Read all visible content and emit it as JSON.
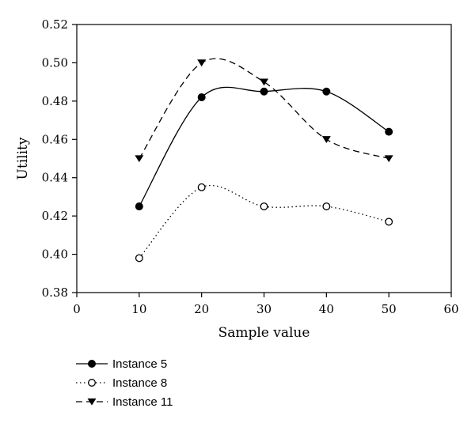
{
  "chart_data": {
    "type": "line",
    "xlabel": "Sample value",
    "ylabel": "Utility",
    "xlim": [
      0,
      60
    ],
    "ylim": [
      0.38,
      0.52
    ],
    "x_ticks": [
      "0",
      "10",
      "20",
      "30",
      "40",
      "50",
      "60"
    ],
    "y_ticks": [
      "0.38",
      "0.40",
      "0.42",
      "0.44",
      "0.46",
      "0.48",
      "0.50",
      "0.52"
    ],
    "grid": false,
    "legend_position": "bottom-left",
    "x": [
      10,
      20,
      30,
      40,
      50
    ],
    "series": [
      {
        "name": "Instance 5",
        "values": [
          0.425,
          0.482,
          0.485,
          0.485,
          0.464
        ],
        "line_style": "solid",
        "marker": "filled-circle",
        "color": "#000000"
      },
      {
        "name": "Instance 8",
        "values": [
          0.398,
          0.435,
          0.425,
          0.425,
          0.417
        ],
        "line_style": "dotted",
        "marker": "open-circle",
        "color": "#000000"
      },
      {
        "name": "Instance 11",
        "values": [
          0.45,
          0.5,
          0.49,
          0.46,
          0.45
        ],
        "line_style": "dashed",
        "marker": "filled-triangle-down",
        "color": "#000000"
      }
    ]
  }
}
